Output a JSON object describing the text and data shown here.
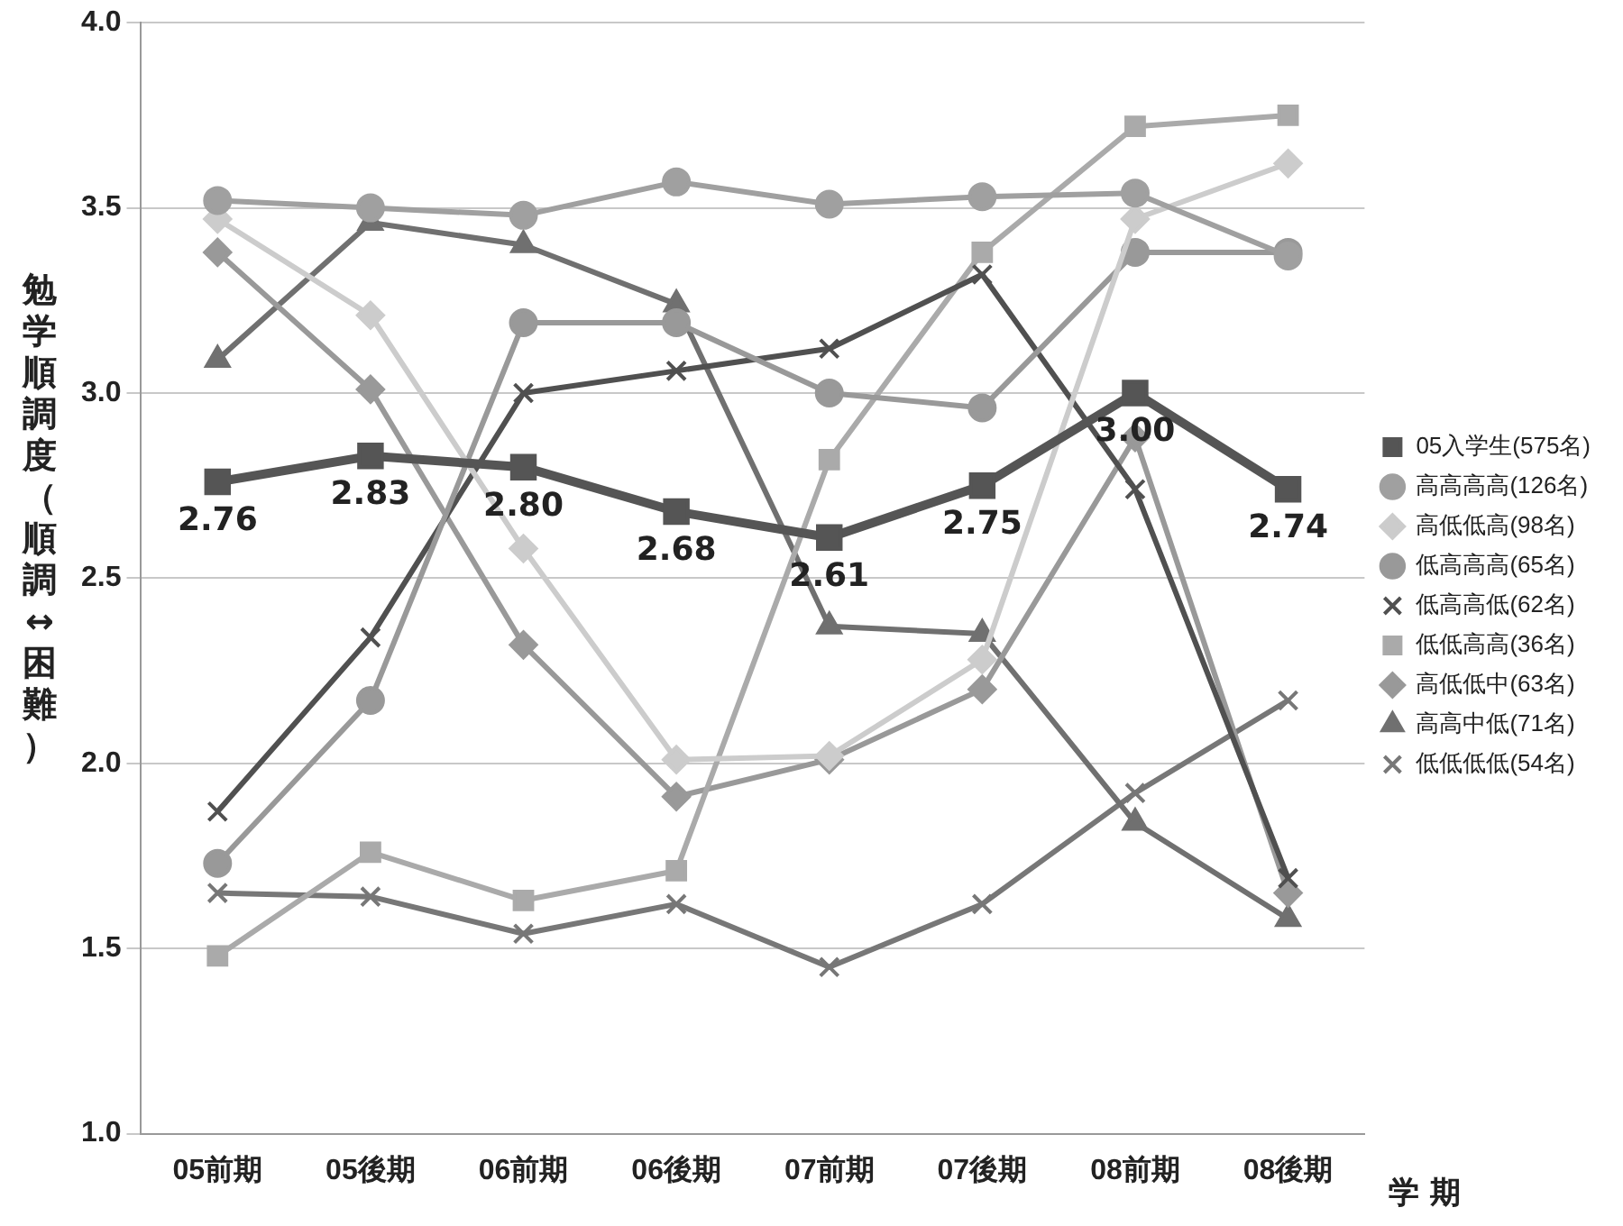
{
  "chart_data": {
    "type": "line",
    "ylabel": "勉学順調度（順調↔困難）",
    "xlabel": "学 期",
    "categories": [
      "05前期",
      "05後期",
      "06前期",
      "06後期",
      "07前期",
      "07後期",
      "08前期",
      "08後期"
    ],
    "ylim": [
      1.0,
      4.0
    ],
    "yticks": [
      {
        "value": 1.0,
        "label": "1.0"
      },
      {
        "value": 1.5,
        "label": "1.5"
      },
      {
        "value": 2.0,
        "label": "2.0"
      },
      {
        "value": 2.5,
        "label": "2.5"
      },
      {
        "value": 3.0,
        "label": "3.0"
      },
      {
        "value": 3.5,
        "label": "3.5"
      },
      {
        "value": 4.0,
        "label": "4.0"
      }
    ],
    "grid": "y",
    "legend": "right",
    "line_style": "solid",
    "series": [
      {
        "name": "05入学生(575名)",
        "color": "#555555",
        "marker": "square",
        "values": [
          2.76,
          2.83,
          2.8,
          2.68,
          2.61,
          2.75,
          3.0,
          2.74
        ],
        "value_labels": [
          "2.76",
          "2.83",
          "2.80",
          "2.68",
          "2.61",
          "2.75",
          "3.00",
          "2.74"
        ]
      },
      {
        "name": "高高高高(126名)",
        "color": "#a0a0a0",
        "marker": "circle",
        "values": [
          3.52,
          3.5,
          3.48,
          3.57,
          3.51,
          3.53,
          3.54,
          3.37
        ]
      },
      {
        "name": "高低低高(98名)",
        "color": "#cccccc",
        "marker": "diamond",
        "values": [
          3.47,
          3.21,
          2.58,
          2.01,
          2.02,
          2.28,
          3.47,
          3.62
        ]
      },
      {
        "name": "低高高高(65名)",
        "color": "#999999",
        "marker": "circle",
        "values": [
          1.73,
          2.17,
          3.19,
          3.19,
          3.0,
          2.96,
          3.38,
          3.38
        ]
      },
      {
        "name": "低高高低(62名)",
        "color": "#505050",
        "marker": "cross",
        "values": [
          1.87,
          2.34,
          3.0,
          3.06,
          3.12,
          3.32,
          2.74,
          1.69
        ]
      },
      {
        "name": "低低高高(36名)",
        "color": "#aaaaaa",
        "marker": "square",
        "values": [
          1.48,
          1.76,
          1.63,
          1.71,
          2.82,
          3.38,
          3.72,
          3.75
        ]
      },
      {
        "name": "高低低中(63名)",
        "color": "#999999",
        "marker": "diamond",
        "values": [
          3.38,
          3.01,
          2.32,
          1.91,
          2.01,
          2.2,
          2.88,
          1.65
        ]
      },
      {
        "name": "高高中低(71名)",
        "color": "#707070",
        "marker": "triangle",
        "values": [
          3.09,
          3.46,
          3.4,
          3.24,
          2.37,
          2.35,
          1.84,
          1.58
        ]
      },
      {
        "name": "低低低低(54名)",
        "color": "#777777",
        "marker": "cross",
        "values": [
          1.65,
          1.64,
          1.54,
          1.62,
          1.45,
          1.62,
          1.92,
          2.17
        ]
      }
    ]
  }
}
